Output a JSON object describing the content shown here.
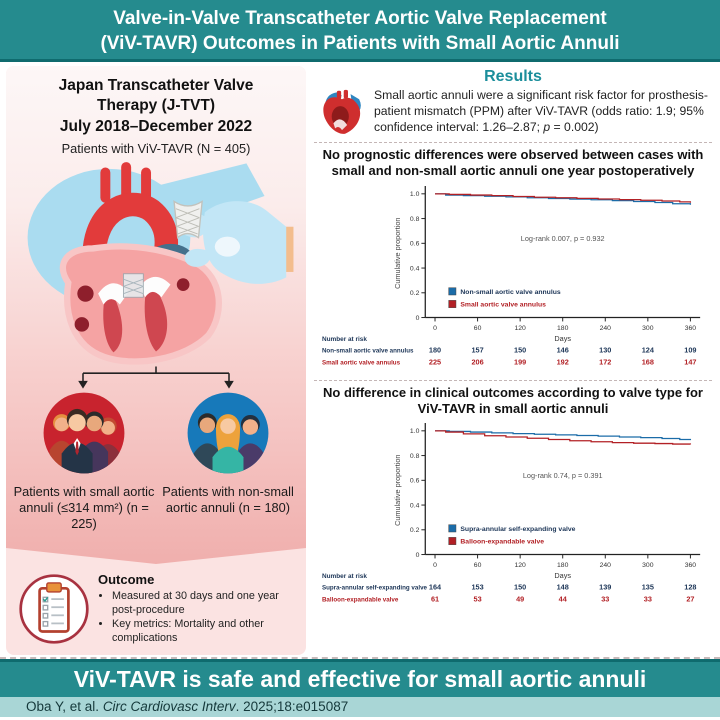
{
  "title_banner": {
    "line1": "Valve-in-Valve Transcatheter Aortic Valve Replacement",
    "line2": "(ViV-TAVR) Outcomes in Patients with Small Aortic Annuli"
  },
  "left_panel": {
    "registry_line1": "Japan Transcatheter Valve",
    "registry_line2": "Therapy (J-TVT)",
    "registry_line3": "July 2018–December 2022",
    "cohort": "Patients with ViV-TAVR (N = 405)",
    "group_small": "Patients with small aortic annuli (≤314 mm²) (n = 225)",
    "group_nonsmall": "Patients with non-small aortic annuli (n = 180)",
    "outcome": {
      "heading": "Outcome",
      "bullets": [
        "Measured at 30 days and one year post-procedure",
        "Key metrics: Mortality and other complications"
      ]
    }
  },
  "results_panel": {
    "heading": "Results",
    "summary_pre": "Small aortic annuli were a significant risk factor for prosthesis-patient mismatch (PPM) after ViV-TAVR (odds ratio: 1.9; 95% confidence interval: 1.26–2.87; ",
    "summary_p": "p",
    "summary_post": " = 0.002)"
  },
  "bottom_banner": {
    "conclusion": "ViV-TAVR is safe and effective for small aortic annuli",
    "citation_prefix": "Oba Y, et al. ",
    "citation_journal": "Circ Cardiovasc Interv",
    "citation_suffix": ". 2025;18:e015087"
  },
  "chart_data": [
    {
      "type": "line",
      "subtype": "kaplan-meier",
      "title": "No prognostic differences were observed between cases with small and non-small aortic annuli one year postoperatively",
      "ylabel": "Cumulative proportion",
      "xlabel": "Days",
      "xticks": [
        0,
        60,
        120,
        180,
        240,
        300,
        360
      ],
      "yticks": [
        1.0,
        0.8,
        0.6,
        0.4,
        0.2,
        0
      ],
      "xlim": [
        0,
        360
      ],
      "ylim": [
        0,
        1.04
      ],
      "annotation": "Log-rank 0.007, p = 0.932",
      "legend_position": "lower-left-inside",
      "grid": false,
      "series": [
        {
          "name": "Non-small aortic valve annulus",
          "color": "#1b6ca8",
          "x": [
            0,
            15,
            40,
            70,
            100,
            130,
            160,
            190,
            220,
            250,
            280,
            310,
            335,
            360
          ],
          "y": [
            1.0,
            0.99,
            0.985,
            0.98,
            0.975,
            0.968,
            0.962,
            0.957,
            0.952,
            0.945,
            0.938,
            0.93,
            0.92,
            0.912
          ]
        },
        {
          "name": "Small aortic valve annulus",
          "color": "#b22025",
          "x": [
            0,
            20,
            50,
            80,
            110,
            140,
            170,
            200,
            230,
            260,
            290,
            320,
            345,
            360
          ],
          "y": [
            1.0,
            0.995,
            0.99,
            0.985,
            0.978,
            0.972,
            0.968,
            0.963,
            0.958,
            0.953,
            0.948,
            0.942,
            0.935,
            0.928
          ]
        }
      ],
      "number_at_risk": {
        "label": "Number at risk",
        "rows": [
          {
            "name": "Non-small aortic valve annulus",
            "color": "#1c3557",
            "values": [
              180,
              157,
              150,
              146,
              130,
              124,
              109
            ]
          },
          {
            "name": "Small aortic valve annulus",
            "color": "#b22025",
            "values": [
              225,
              206,
              199,
              192,
              172,
              168,
              147
            ]
          }
        ]
      }
    },
    {
      "type": "line",
      "subtype": "kaplan-meier",
      "title": "No difference in clinical outcomes according to valve type for ViV-TAVR in small aortic annuli",
      "ylabel": "Cumulative proportion",
      "xlabel": "Days",
      "xticks": [
        0,
        60,
        120,
        180,
        240,
        300,
        360
      ],
      "yticks": [
        1.0,
        0.8,
        0.6,
        0.4,
        0.2,
        0
      ],
      "xlim": [
        0,
        360
      ],
      "ylim": [
        0,
        1.04
      ],
      "annotation": "Log-rank 0.74, p = 0.391",
      "legend_position": "lower-left-inside",
      "grid": false,
      "series": [
        {
          "name": "Supra-annular self-expanding valve",
          "color": "#1b6ca8",
          "x": [
            0,
            20,
            50,
            80,
            110,
            140,
            170,
            200,
            230,
            260,
            290,
            320,
            345,
            360
          ],
          "y": [
            1.0,
            0.995,
            0.99,
            0.983,
            0.977,
            0.972,
            0.967,
            0.962,
            0.957,
            0.95,
            0.945,
            0.938,
            0.93,
            0.925
          ]
        },
        {
          "name": "Balloon-expandable valve",
          "color": "#b22025",
          "x": [
            0,
            15,
            40,
            70,
            100,
            130,
            160,
            190,
            220,
            250,
            280,
            310,
            335,
            360
          ],
          "y": [
            1.0,
            0.99,
            0.975,
            0.96,
            0.95,
            0.94,
            0.93,
            0.92,
            0.912,
            0.905,
            0.9,
            0.897,
            0.893,
            0.89
          ]
        }
      ],
      "number_at_risk": {
        "label": "Number at risk",
        "rows": [
          {
            "name": "Supra-annular self-expanding valve",
            "color": "#1c3557",
            "values": [
              164,
              153,
              150,
              148,
              139,
              135,
              128
            ]
          },
          {
            "name": "Balloon-expandable valve",
            "color": "#b22025",
            "values": [
              61,
              53,
              49,
              44,
              33,
              33,
              27
            ]
          }
        ]
      }
    }
  ],
  "colors": {
    "banner_teal": "#258b8e",
    "banner_dark_line": "#0f6b6e",
    "citation_strip": "#a9d6d6",
    "results_heading_teal": "#1b8e9b",
    "km_blue": "#1b6ca8",
    "km_red": "#b22025",
    "panel_pink": "#f0afad"
  }
}
